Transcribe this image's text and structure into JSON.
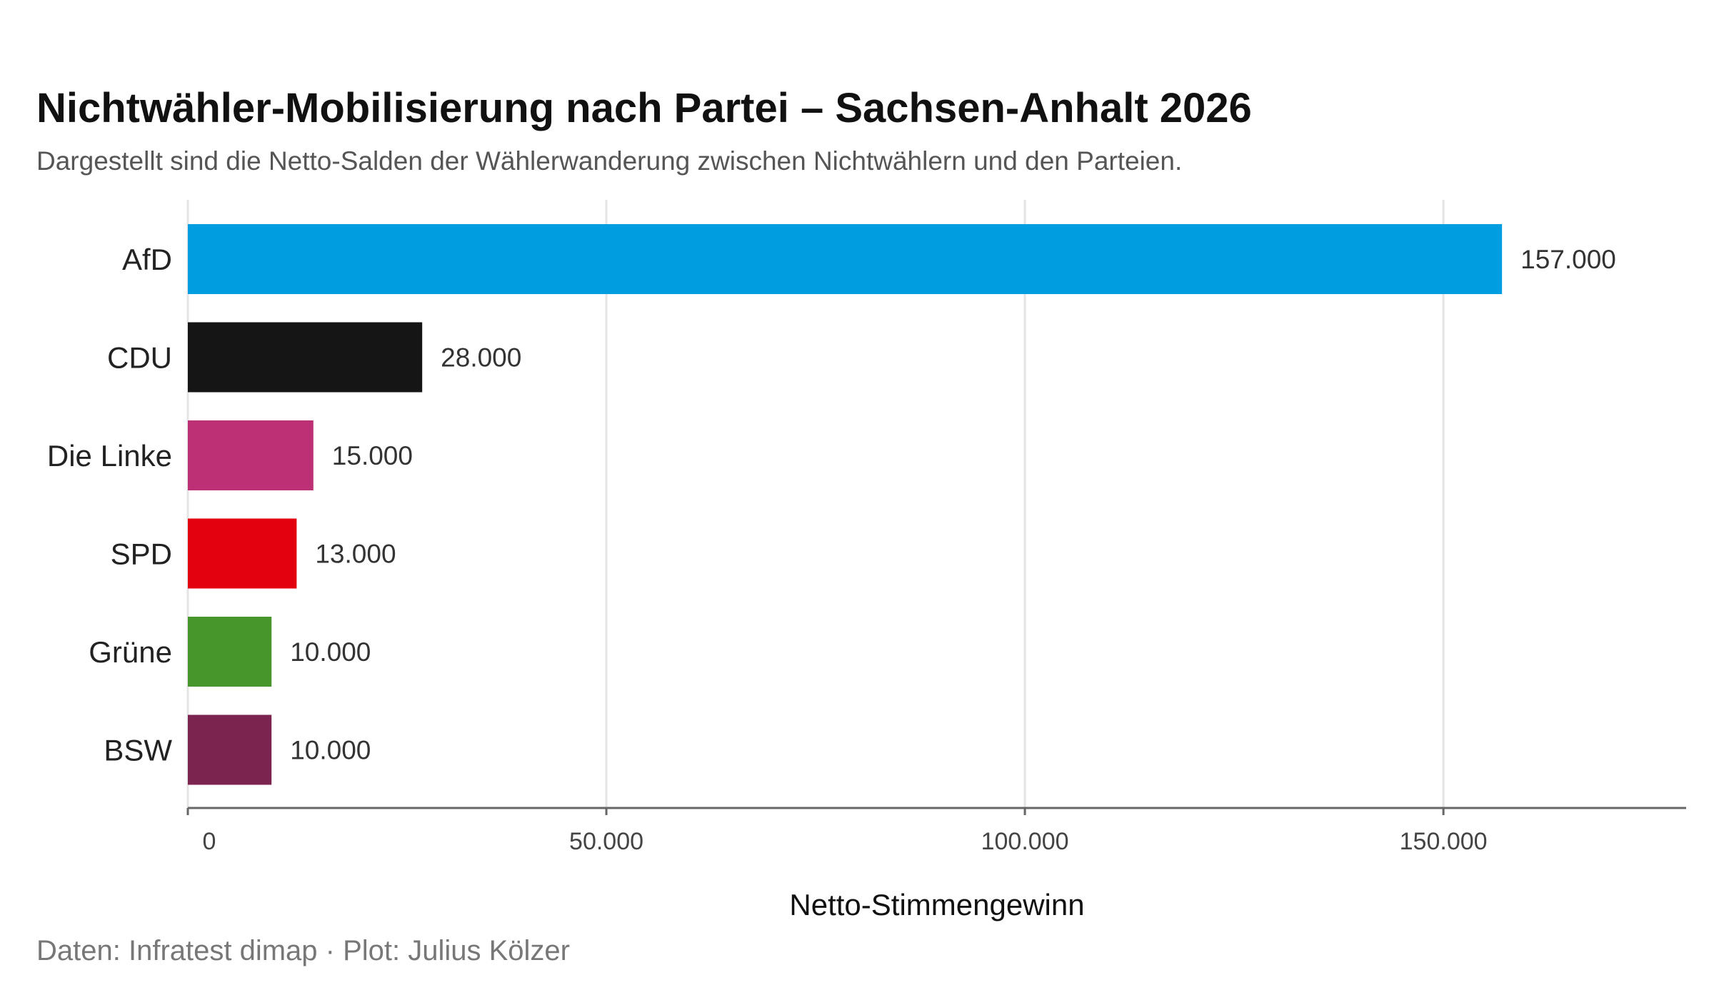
{
  "chart_data": {
    "type": "bar",
    "orientation": "horizontal",
    "title": "Nichtwähler-Mobilisierung nach Partei – Sachsen-Anhalt 2026",
    "subtitle": "Dargestellt sind die Netto-Salden der Wählerwanderung zwischen Nichtwählern und den Parteien.",
    "caption": "Daten: Infratest dimap · Plot: Julius Kölzer",
    "xlabel": "Netto-Stimmengewinn",
    "ylabel": "",
    "xlim": [
      0,
      179000
    ],
    "xticks": [
      0,
      50000,
      100000,
      150000
    ],
    "xtick_labels": [
      "0",
      "50.000",
      "100.000",
      "150.000"
    ],
    "grid": "vertical",
    "categories": [
      "AfD",
      "CDU",
      "Die Linke",
      "SPD",
      "Grüne",
      "BSW"
    ],
    "values": [
      157000,
      28000,
      15000,
      13000,
      10000,
      10000
    ],
    "value_labels": [
      "157.000",
      "28.000",
      "15.000",
      "13.000",
      "10.000",
      "10.000"
    ],
    "colors": [
      "#009ee0",
      "#151515",
      "#be3075",
      "#e3000f",
      "#46962b",
      "#7b2450"
    ]
  }
}
